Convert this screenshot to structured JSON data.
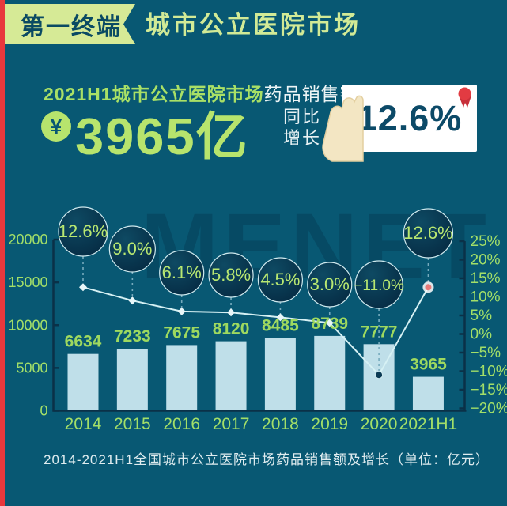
{
  "header": {
    "badge": "第一终端",
    "title": "城市公立医院市场"
  },
  "headline": {
    "line1_highlight": "2021H1城市公立医院市场",
    "line1_rest": "药品销售额达",
    "currency_symbol": "¥",
    "amount": "3965亿",
    "yoy_label_line1": "同比",
    "yoy_label_line2": "增长",
    "yoy_value": "12.6%"
  },
  "watermark": "MENET",
  "caption": "2014-2021H1全国城市公立医院市场药品销售额及增长（单位：亿元）",
  "chart_data": {
    "type": "bar+line",
    "title": "2014-2021H1全国城市公立医院市场药品销售额及增长（单位：亿元）",
    "categories": [
      "2014",
      "2015",
      "2016",
      "2017",
      "2018",
      "2019",
      "2020",
      "2021H1"
    ],
    "series": [
      {
        "name": "药品销售额（亿元）",
        "type": "bar",
        "values": [
          6634,
          7233,
          7675,
          8120,
          8485,
          8739,
          7777,
          3965
        ]
      },
      {
        "name": "同比增长（%）",
        "type": "line",
        "values": [
          12.6,
          9.0,
          6.1,
          5.8,
          4.5,
          3.0,
          -11.0,
          12.6
        ]
      }
    ],
    "bubble_labels": [
      "12.6%",
      "9.0%",
      "6.1%",
      "5.8%",
      "4.5%",
      "3.0%",
      "−11.0%",
      "12.6%"
    ],
    "left_axis": {
      "tick_labels": [
        "20000",
        "15000",
        "10000",
        "5000",
        "0"
      ],
      "tick_values": [
        20000,
        15000,
        10000,
        5000,
        0
      ],
      "range": [
        0,
        20000
      ]
    },
    "right_axis": {
      "tick_labels": [
        "25%",
        "20%",
        "15%",
        "10%",
        "5%",
        "0%",
        "−5%",
        "−10%",
        "−15%",
        "−20%"
      ],
      "tick_values": [
        25,
        20,
        15,
        10,
        5,
        0,
        -5,
        -10,
        -15,
        -20
      ],
      "range": [
        -20,
        25
      ]
    },
    "grid": false,
    "legend": "none"
  },
  "colors": {
    "background": "#085873",
    "accent_red": "#e8383d",
    "banner_bg": "#d6ea96",
    "banner_text": "#0a4a63",
    "title_green": "#d2ea96",
    "highlight_green": "#a9e066",
    "big_number_green": "#b7e46d",
    "white_text": "#edf5f6",
    "bar_fill": "#bfdfe9",
    "axis_label_green": "#a3df68",
    "value_label_green": "#9ed95f",
    "axis_line": "#0a3148",
    "line_color": "#d6f1f4",
    "bubble_fill_top": "#0e4a63",
    "bubble_fill_bottom": "#062c44",
    "bubble_border": "#cfe9ee",
    "bubble_text": "#b9e871",
    "connector": "#76aabd",
    "marker_light": "#e8f6f8",
    "marker_2020": "#0a3a54",
    "marker_2021": "#e87a78",
    "card_bg": "#ffffff",
    "card_text": "#0c4a68",
    "medal_red": "#e23b42",
    "hand_fill": "#f3e6c3",
    "watermark_color": "#053a52"
  }
}
